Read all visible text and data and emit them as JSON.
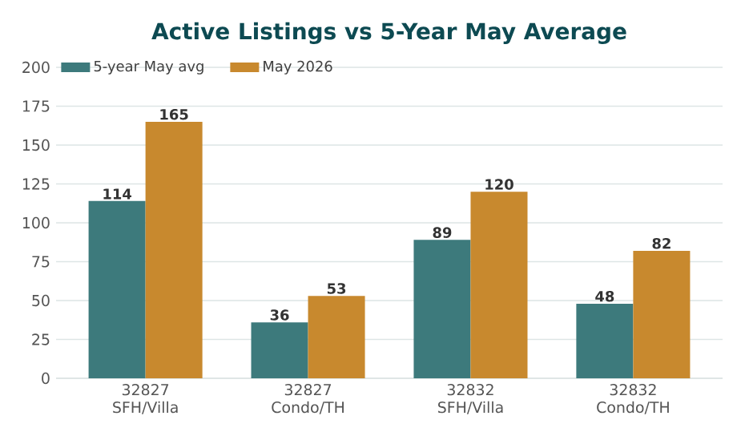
{
  "chart_data": {
    "type": "bar",
    "title": "Active Listings vs 5-Year May Average",
    "categories": [
      "32827 SFH/Villa",
      "32827 Condo/TH",
      "32832 SFH/Villa",
      "32832 Condo/TH"
    ],
    "series": [
      {
        "name": "5-year May avg",
        "color": "#3d7a7c",
        "values": [
          114,
          36,
          89,
          48
        ]
      },
      {
        "name": "May 2026",
        "color": "#c8892e",
        "values": [
          165,
          53,
          120,
          82
        ]
      }
    ],
    "ylim": [
      0,
      200
    ],
    "yticks": [
      0,
      25,
      50,
      75,
      100,
      125,
      150,
      175,
      200
    ],
    "grid": "y",
    "legend": "top left",
    "data_labels": true
  }
}
